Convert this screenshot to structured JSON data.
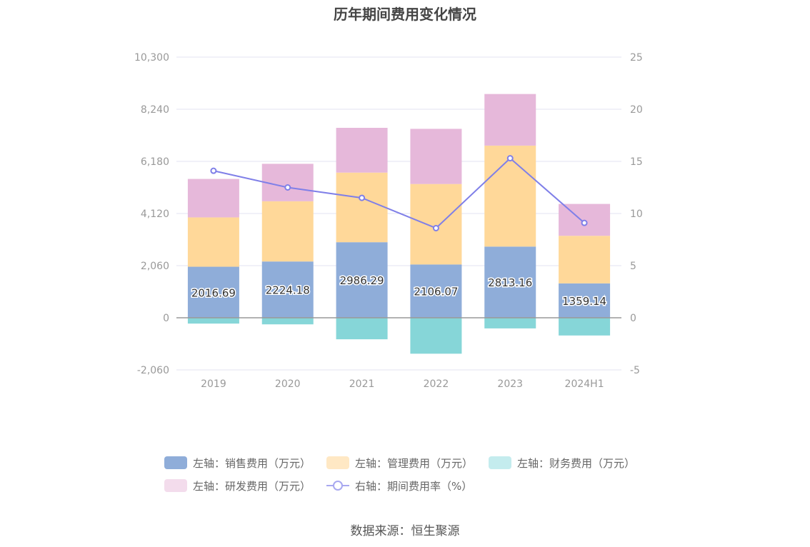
{
  "chart_data": {
    "type": "bar",
    "title": "历年期间费用变化情况",
    "categories": [
      "2019",
      "2020",
      "2021",
      "2022",
      "2023",
      "2024H1"
    ],
    "series": [
      {
        "name": "左轴：销售费用（万元）",
        "axis": "left",
        "color": "#8fadd9",
        "values": [
          2016.69,
          2224.18,
          2986.29,
          2106.07,
          2813.16,
          1359.14
        ]
      },
      {
        "name": "左轴：管理费用（万元）",
        "axis": "left",
        "color": "#ffd899",
        "values": [
          1950,
          2380,
          2750,
          3180,
          3990,
          1880
        ]
      },
      {
        "name": "左轴：财务费用（万元）",
        "axis": "left",
        "color": "#86d6d8",
        "values": [
          -230,
          -260,
          -850,
          -1420,
          -420,
          -700
        ]
      },
      {
        "name": "左轴：研发费用（万元）",
        "axis": "left",
        "color": "#e6b8da",
        "values": [
          1520,
          1480,
          1770,
          2180,
          2040,
          1260
        ]
      },
      {
        "name": "右轴：期间费用率（%）",
        "axis": "right",
        "type": "line",
        "color": "#7f7fe8",
        "values": [
          14.1,
          12.5,
          11.5,
          8.6,
          15.3,
          9.1
        ]
      }
    ],
    "y_left": {
      "ticks": [
        "10,300",
        "8,240",
        "6,180",
        "4,120",
        "2,060",
        "0",
        "-2,060"
      ],
      "min": -2060,
      "max": 10300
    },
    "y_right": {
      "ticks": [
        "25",
        "20",
        "15",
        "10",
        "5",
        "0",
        "-5"
      ],
      "min": -5,
      "max": 25
    },
    "grid": true,
    "legend_position": "bottom",
    "data_labels": [
      "2016.69",
      "2224.18",
      "2986.29",
      "2106.07",
      "2813.16",
      "1359.14"
    ]
  },
  "legend": [
    [
      {
        "label": "左轴：销售费用（万元）",
        "color": "#8fadd9",
        "kind": "swatch"
      },
      {
        "label": "左轴：管理费用（万元）",
        "color": "#ffe8c4",
        "kind": "swatch"
      },
      {
        "label": "左轴：财务费用（万元）",
        "color": "#c4ecee",
        "kind": "swatch"
      }
    ],
    [
      {
        "label": "左轴：研发费用（万元）",
        "color": "#f3dcec",
        "kind": "swatch"
      },
      {
        "label": "右轴：期间费用率（%）",
        "color": "#a8a8f0",
        "kind": "line"
      }
    ]
  ],
  "source": "数据来源：恒生聚源"
}
